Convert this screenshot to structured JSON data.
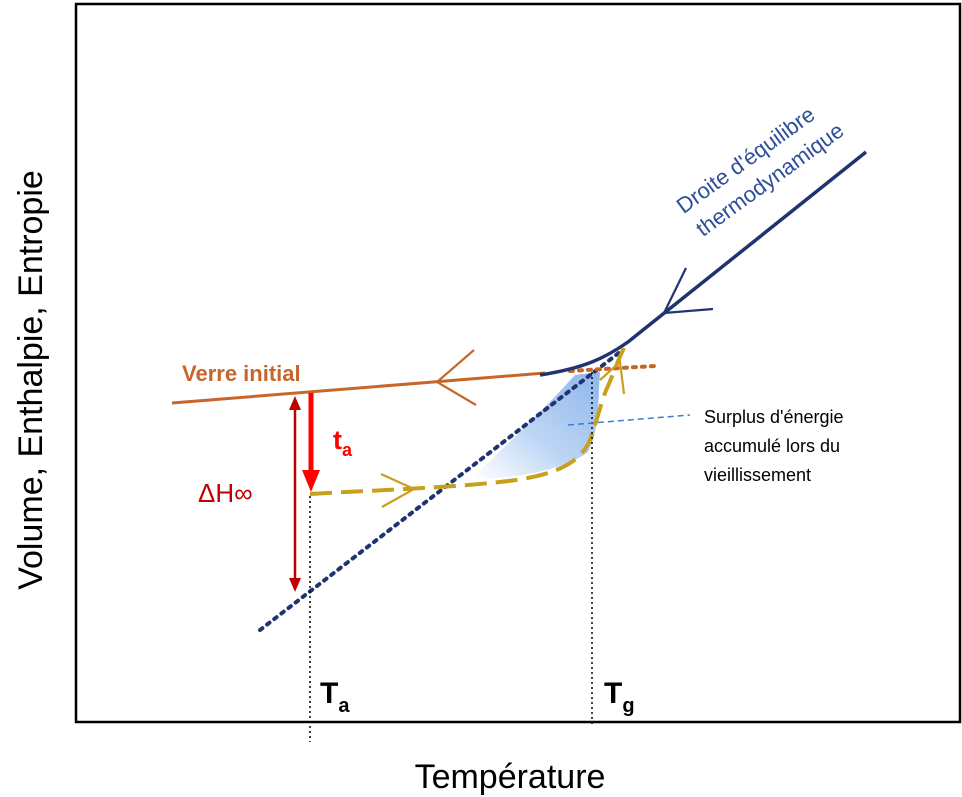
{
  "axes": {
    "x_label": "Température",
    "y_label": "Volume, Enthalpie, Entropie"
  },
  "labels": {
    "equilibrium_line_1": "Droite d'équilibre",
    "equilibrium_line_2": "thermodynamique",
    "initial_glass": "Verre initial",
    "aging_time_main": "t",
    "aging_time_sub": "a",
    "delta_h": "ΔH∞",
    "surplus_1": "Surplus d'énergie",
    "surplus_2": "accumulé lors du",
    "surplus_3": "vieillissement",
    "ta_main": "T",
    "ta_sub": "a",
    "tg_main": "T",
    "tg_sub": "g"
  },
  "colors": {
    "equilibrium": "#1f3470",
    "initial_glass": "#c8662a",
    "aging_path": "#c8a01e",
    "aging_arrow": "#ff0000",
    "delta_h": "#c00000",
    "surplus_fill": "#a9c8f0",
    "leader_line": "#3a7fd0",
    "axis": "#000000"
  }
}
